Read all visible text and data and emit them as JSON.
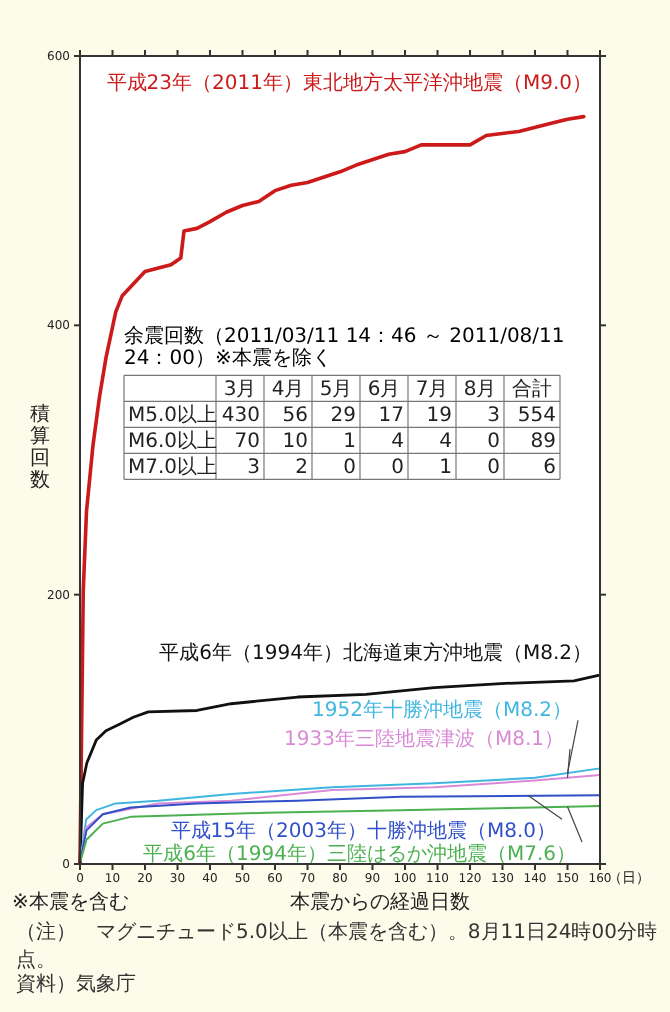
{
  "chart_data": {
    "type": "line",
    "xlabel": "本震からの経過日数",
    "ylabel": "積算回数",
    "xlim": [
      0,
      160
    ],
    "xticks": [
      0,
      10,
      20,
      30,
      40,
      50,
      60,
      70,
      80,
      90,
      100,
      110,
      120,
      130,
      140,
      150,
      160
    ],
    "ylim": [
      0,
      600
    ],
    "yticks": [
      0,
      200,
      400,
      600
    ],
    "grid": false,
    "marker": "none",
    "line_style": "solid",
    "series": [
      {
        "name": "平成23年（2011年）東北地方太平洋沖地震（M9.0）",
        "color": "#cc1a1a",
        "x": [
          0,
          0.5,
          1,
          2,
          4,
          6,
          8,
          11,
          13,
          20,
          28,
          31,
          32,
          36,
          40,
          45,
          50,
          55,
          60,
          65,
          70,
          80,
          85,
          95,
          100,
          105,
          120,
          125,
          135,
          145,
          150,
          155
        ],
        "values": [
          1,
          100,
          203,
          262,
          311,
          347,
          376,
          410,
          422,
          440,
          445,
          450,
          470,
          472,
          477,
          484,
          489,
          492,
          500,
          504,
          506,
          514,
          519,
          527,
          529,
          534,
          534,
          541,
          544,
          550,
          553,
          555
        ]
      },
      {
        "name": "平成6年（1994年）北海道東方沖地震（M8.2）",
        "color": "#111111",
        "x": [
          0,
          0.8,
          2.1,
          5,
          8,
          12.3,
          16.4,
          21,
          36,
          46.5,
          67,
          88,
          109,
          129.5,
          152,
          159.5
        ],
        "values": [
          1,
          60,
          75,
          92,
          99,
          104,
          109,
          113,
          114,
          119,
          124,
          126,
          131,
          134,
          136,
          140
        ]
      },
      {
        "name": "1952年十勝沖地震（M8.2）",
        "color": "#3fb6e0",
        "x": [
          0,
          1.9,
          5,
          11,
          24,
          46.5,
          77.6,
          109,
          140,
          160
        ],
        "values": [
          1,
          33,
          40,
          45,
          47,
          52,
          57,
          60,
          64,
          71
        ]
      },
      {
        "name": "1933年三陸地震津波（M8.1）",
        "color": "#d98ad6",
        "x": [
          0,
          1.9,
          7,
          24,
          46.5,
          77.6,
          109,
          140,
          160
        ],
        "values": [
          1,
          27,
          37,
          45,
          47,
          55,
          57,
          62,
          66
        ]
      },
      {
        "name": "平成15年（2003年）十勝沖地震（M8.0）",
        "color": "#3050c8",
        "x": [
          0,
          2,
          7,
          15.5,
          36,
          67,
          98.7,
          160
        ],
        "values": [
          1,
          25,
          37,
          42,
          45,
          47,
          50,
          51
        ]
      },
      {
        "name": "平成6年（1994年）三陸はるか沖地震（M7.6）",
        "color": "#4cb050",
        "x": [
          0,
          2,
          7,
          15.5,
          57,
          98.7,
          140,
          160
        ],
        "values": [
          1,
          18,
          30,
          35,
          38,
          40,
          42,
          43
        ]
      }
    ],
    "annotations": [
      "余震回数（2011/03/11 14：46 ～ 2011/08/11 24：00）※本震を除く",
      "※本震を含む",
      "（日）",
      "（注）　マグニチュード5.0以上（本震を含む）。8月11日24時00分時点。",
      "資料）気象庁",
      "3月",
      "4月",
      "5月",
      "6月",
      "7月",
      "8月",
      "合計",
      "M5.0以上",
      "430",
      "56",
      "29",
      "17",
      "19",
      "3",
      "554",
      "M6.0以上",
      "70",
      "10",
      "1",
      "4",
      "4",
      "0",
      "89",
      "M7.0以上",
      "3",
      "2",
      "0",
      "0",
      "1",
      "0",
      "6"
    ]
  }
}
